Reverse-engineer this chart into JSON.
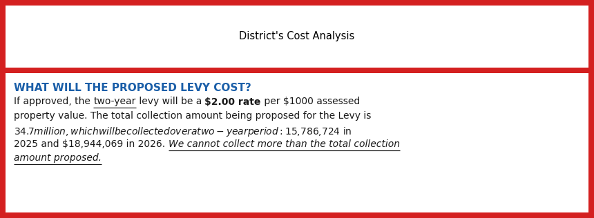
{
  "title": "District's Cost Analysis",
  "title_fontsize": 10.5,
  "red_color": "#D42020",
  "white_color": "#FFFFFF",
  "heading_text": "WHAT WILL THE PROPOSED LEVY COST?",
  "heading_color": "#1A5EA8",
  "heading_fontsize": 11.0,
  "body_fontsize": 10.0,
  "text_color": "#1a1a1a",
  "line1_seg1": "If approved, the ",
  "line1_seg2": "two-year",
  "line1_seg3": " levy will be a ",
  "line1_seg4": "$2.00 rate",
  "line1_seg5": " per $1000 assessed",
  "line2": "property value. The total collection amount being proposed for the Levy is",
  "line3": "$34.7 million, which will be collected over a two-year period: $15,786,724 in",
  "line4_plain": "2025 and $18,944,069 in 2026. ",
  "line4_italic": "We cannot collect more than the total collection",
  "line5_italic": "amount proposed."
}
